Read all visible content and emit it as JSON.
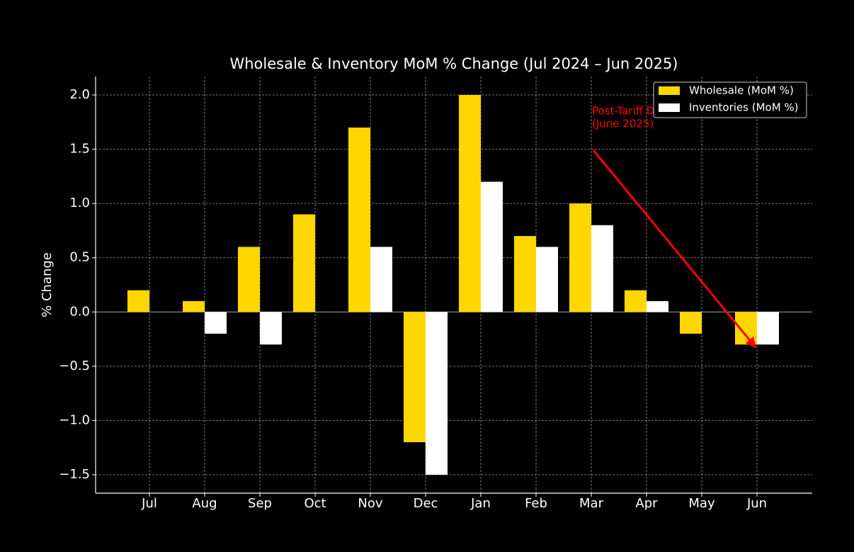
{
  "chart_data": {
    "type": "bar",
    "title": "Wholesale & Inventory MoM % Change (Jul 2024 – Jun 2025)",
    "y_label": "% Change",
    "categories": [
      "Jul",
      "Aug",
      "Sep",
      "Oct",
      "Nov",
      "Dec",
      "Jan",
      "Feb",
      "Mar",
      "Apr",
      "May",
      "Jun"
    ],
    "series": [
      {
        "name": "Wholesale (MoM %)",
        "color": "#FFD700",
        "values": [
          0.2,
          0.1,
          0.6,
          0.9,
          1.7,
          -1.2,
          2.0,
          0.7,
          1.0,
          0.2,
          -0.2,
          -0.3
        ]
      },
      {
        "name": "Inventories (MoM %)",
        "color": "#FFFFFF",
        "values": [
          0,
          -0.2,
          -0.3,
          0,
          0.6,
          -1.5,
          1.2,
          0.6,
          0.8,
          0.1,
          0,
          -0.3
        ]
      }
    ],
    "ylim": [
      -1.67,
      2.17
    ],
    "yticks": [
      {
        "value": -1.5,
        "label": "−1.5"
      },
      {
        "value": -1.0,
        "label": "−1.0"
      },
      {
        "value": -0.5,
        "label": "−0.5"
      },
      {
        "value": 0,
        "label": "0.0"
      },
      0.5,
      {
        "value": 1.0,
        "label": "1.0"
      },
      1.5,
      {
        "value": 2.0,
        "label": "2.0"
      }
    ],
    "grid": true,
    "legend": "upper right",
    "annotation": {
      "lines": [
        "Post-Tariff Dip",
        "(June 2025)"
      ],
      "color": "#FF0000"
    }
  }
}
